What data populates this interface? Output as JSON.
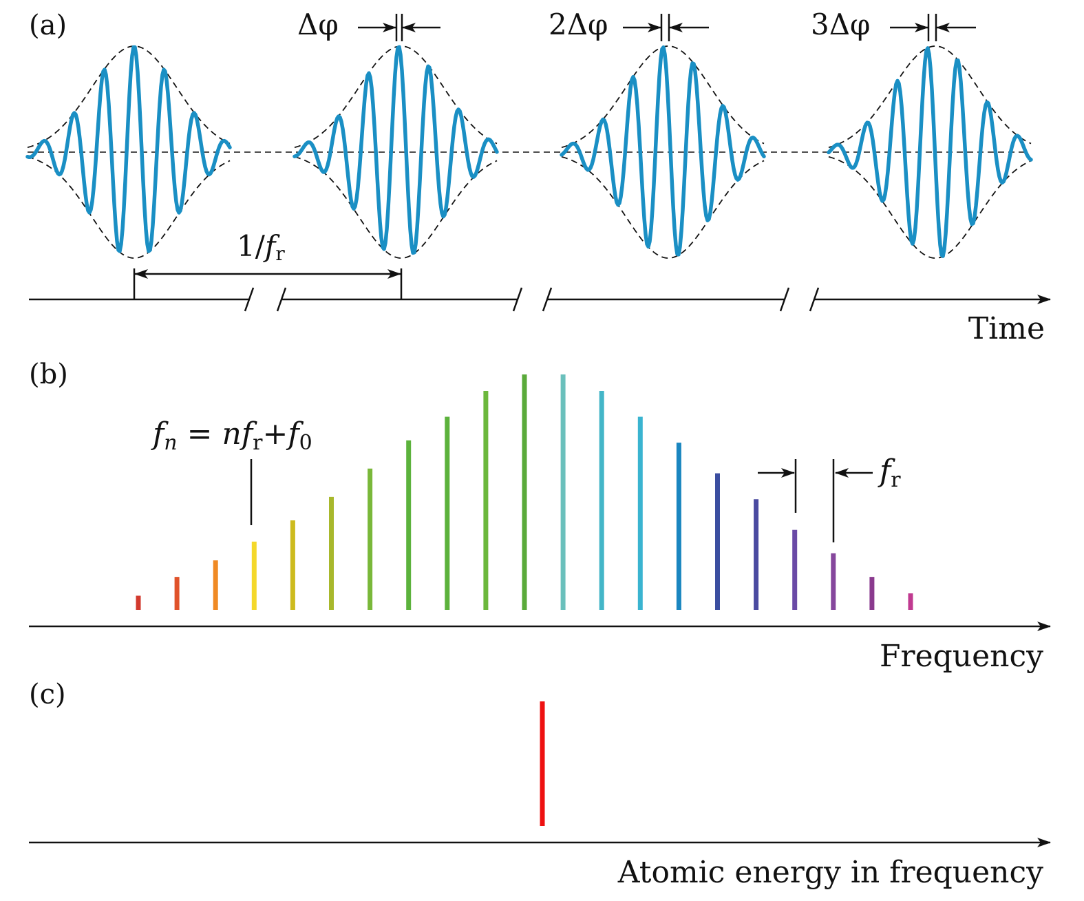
{
  "panel_a": {
    "label": "(a)",
    "axis_label": "Time",
    "period_label_num": "1/",
    "period_label_f": "f",
    "period_label_sub": "r",
    "phase_labels": [
      "Δφ",
      "2Δφ",
      "3Δφ"
    ],
    "pulse_count": 4,
    "pulse_color": "#1a8fc4",
    "envelope_style": "dashed"
  },
  "panel_b": {
    "label": "(b)",
    "axis_label": "Frequency",
    "formula": {
      "lhs": "f",
      "lhs_sub": "n",
      "eq": "=",
      "n": "n",
      "fr": "f",
      "fr_sub": "r",
      "plus": "+",
      "f0": "f",
      "f0_sub": "0"
    },
    "spacing_label": "f",
    "spacing_label_sub": "r",
    "comb_lines": [
      {
        "amplitude": 0.06,
        "color": "#d23a2e"
      },
      {
        "amplitude": 0.14,
        "color": "#e0522a"
      },
      {
        "amplitude": 0.21,
        "color": "#f08a24"
      },
      {
        "amplitude": 0.29,
        "color": "#f4d82a"
      },
      {
        "amplitude": 0.38,
        "color": "#cdbb1e"
      },
      {
        "amplitude": 0.48,
        "color": "#a8b82c"
      },
      {
        "amplitude": 0.6,
        "color": "#7ab83a"
      },
      {
        "amplitude": 0.72,
        "color": "#5cb23c"
      },
      {
        "amplitude": 0.82,
        "color": "#5cb23c"
      },
      {
        "amplitude": 0.93,
        "color": "#6cb83c"
      },
      {
        "amplitude": 1.0,
        "color": "#5aaa3a"
      },
      {
        "amplitude": 1.0,
        "color": "#6ac0bc"
      },
      {
        "amplitude": 0.93,
        "color": "#44b6c8"
      },
      {
        "amplitude": 0.82,
        "color": "#3ab4d0"
      },
      {
        "amplitude": 0.71,
        "color": "#1a86c0"
      },
      {
        "amplitude": 0.58,
        "color": "#3b4ea0"
      },
      {
        "amplitude": 0.47,
        "color": "#4a4aa0"
      },
      {
        "amplitude": 0.34,
        "color": "#6a4aa6"
      },
      {
        "amplitude": 0.24,
        "color": "#85479c"
      },
      {
        "amplitude": 0.14,
        "color": "#8a3a8e"
      },
      {
        "amplitude": 0.07,
        "color": "#c03a90"
      }
    ]
  },
  "panel_c": {
    "label": "(c)",
    "axis_label": "Atomic energy in frequency",
    "line_color": "#ee1111"
  }
}
